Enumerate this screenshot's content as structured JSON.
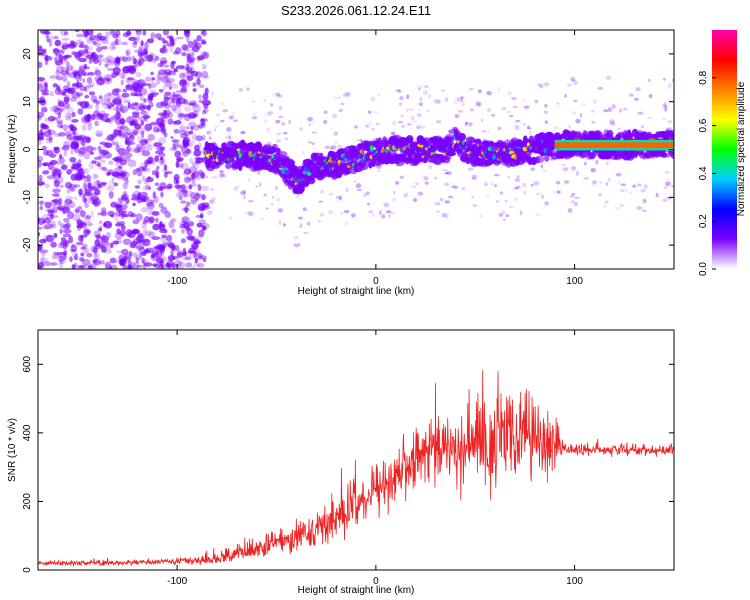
{
  "title": "S233.2026.061.12.24.E11",
  "chart_data": [
    {
      "type": "heatmap",
      "name": "spectrogram",
      "xlabel": "Height of straight line (km)",
      "ylabel": "Frequency (Hz)",
      "xlim": [
        -170,
        150
      ],
      "ylim": [
        -25,
        25
      ],
      "xticks": [
        -100,
        0,
        100
      ],
      "yticks": [
        -20,
        -10,
        0,
        10,
        20
      ],
      "colorbar": {
        "label": "Normalized spectral amplitude",
        "range": [
          0.0,
          1.0
        ],
        "ticks": [
          0.0,
          0.2,
          0.4,
          0.6,
          0.8
        ],
        "colors": [
          "#ffffff",
          "#7b00ff",
          "#0000ff",
          "#00d0ff",
          "#00ff00",
          "#ffff00",
          "#ff8000",
          "#ff0000",
          "#ff00aa"
        ]
      },
      "ridge": {
        "x": [
          -85,
          -70,
          -60,
          -50,
          -45,
          -40,
          -35,
          -30,
          -20,
          -10,
          0,
          10,
          20,
          30,
          35,
          40,
          45,
          50,
          60,
          70,
          80,
          90,
          100,
          120,
          150
        ],
        "y": [
          -1.5,
          -1,
          -1.5,
          -2,
          -4,
          -7,
          -5,
          -3.5,
          -3,
          -2,
          -0.5,
          0,
          -0.5,
          0,
          -0.5,
          2,
          0,
          -0.5,
          -1,
          -0.5,
          0,
          1,
          1,
          1,
          1
        ]
      },
      "noise_region_x": [
        -170,
        -85
      ],
      "noise_color": "#7b00ff"
    },
    {
      "type": "line",
      "name": "snr",
      "xlabel": "Height of straight line (km)",
      "ylabel": "SNR (10 * v/v)",
      "xlim": [
        -170,
        150
      ],
      "ylim": [
        0,
        700
      ],
      "xticks": [
        -100,
        0,
        100
      ],
      "yticks": [
        0,
        200,
        400,
        600
      ],
      "color": "#ee2222",
      "envelope": {
        "x": [
          -170,
          -120,
          -100,
          -85,
          -75,
          -60,
          -45,
          -30,
          -15,
          -5,
          5,
          15,
          25,
          35,
          45,
          55,
          60,
          70,
          80,
          90,
          95,
          100,
          120,
          150
        ],
        "mean": [
          20,
          22,
          25,
          30,
          40,
          60,
          90,
          120,
          170,
          210,
          260,
          300,
          340,
          360,
          370,
          370,
          380,
          380,
          370,
          370,
          355,
          350,
          350,
          350
        ],
        "spread": [
          10,
          12,
          15,
          20,
          30,
          45,
          60,
          80,
          100,
          110,
          120,
          130,
          130,
          150,
          180,
          230,
          260,
          200,
          160,
          120,
          30,
          25,
          25,
          25
        ]
      }
    }
  ]
}
